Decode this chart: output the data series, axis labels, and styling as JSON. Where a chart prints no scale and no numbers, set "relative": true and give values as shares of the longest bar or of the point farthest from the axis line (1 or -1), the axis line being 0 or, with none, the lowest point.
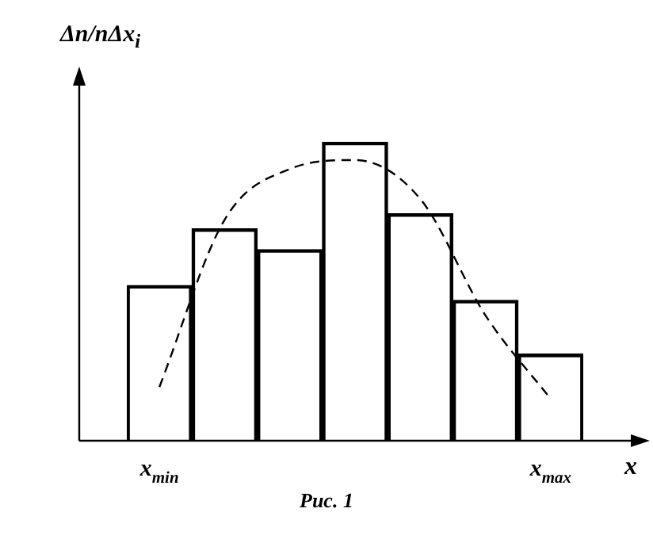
{
  "chart_data": {
    "type": "bar",
    "relative": true,
    "ylabel": "Δn/nΔx$_{i}$",
    "xlabel": "x",
    "annotations": [
      "Рис. 1"
    ],
    "grid": false,
    "legend": false,
    "categories": [
      "x$_{min}$",
      null,
      null,
      null,
      null,
      null,
      "x$_{max}$"
    ],
    "series": [
      {
        "color": "#000000",
        "values": [
          0.52,
          0.71,
          0.64,
          1,
          0.76,
          0.47,
          0.29
        ]
      },
      {
        "type": "line",
        "color": "#000000",
        "line_style": "dashed",
        "marker": "none",
        "values": [
          0.18,
          0.74,
          0.91,
          0.94,
          0.81,
          0.42,
          0.14
        ]
      }
    ]
  }
}
